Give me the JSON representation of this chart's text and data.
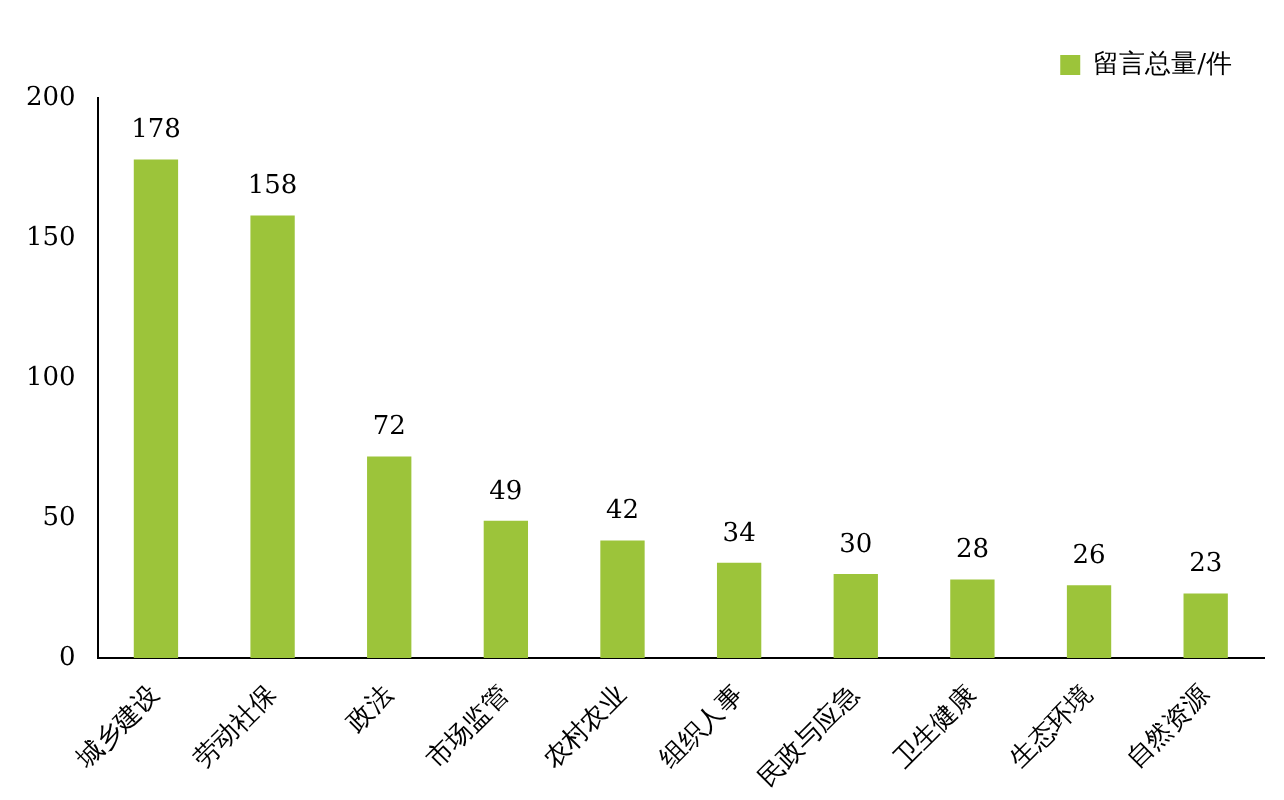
{
  "chart_data": {
    "type": "bar",
    "categories": [
      "城乡建设",
      "劳动社保",
      "政法",
      "市场监管",
      "农村农业",
      "组织人事",
      "民政与应急",
      "卫生健康",
      "生态环境",
      "自然资源"
    ],
    "series": [
      {
        "name": "留言总量/件",
        "color": "#9cc43a",
        "values": [
          178,
          158,
          72,
          49,
          42,
          34,
          30,
          28,
          26,
          23
        ]
      }
    ],
    "ylim": [
      0,
      200
    ],
    "yticks": [
      0,
      50,
      100,
      150,
      200
    ],
    "grid": false,
    "legend": "top right",
    "data_labels": true
  }
}
